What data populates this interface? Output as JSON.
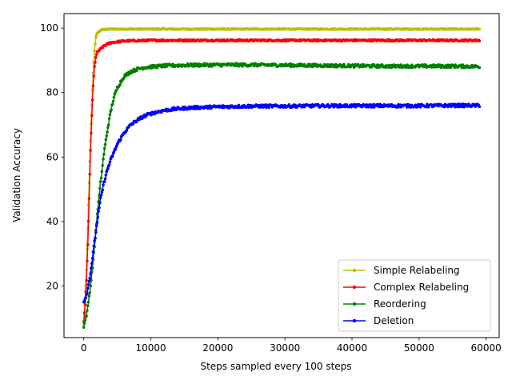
{
  "chart_data": {
    "type": "line",
    "title": "",
    "xlabel": "Steps sampled every 100 steps",
    "ylabel": "Validation Accuracy",
    "xlim": [
      -2950,
      61950
    ],
    "ylim": [
      4,
      104.5
    ],
    "xticks": [
      0,
      10000,
      20000,
      30000,
      40000,
      50000,
      60000
    ],
    "yticks": [
      20,
      40,
      60,
      80,
      100
    ],
    "grid": false,
    "legend_position": "lower-right",
    "marker": "circle",
    "series": [
      {
        "name": "Simple Relabeling",
        "color": "#bfbf00",
        "x": [
          0,
          200,
          400,
          600,
          800,
          1000,
          1200,
          1400,
          1600,
          1800,
          2000,
          2500,
          3000,
          4000,
          6000,
          10000,
          20000,
          30000,
          40000,
          50000,
          59000
        ],
        "y": [
          8,
          15,
          25,
          38,
          52,
          65,
          76,
          86,
          93,
          97,
          98.5,
          99.3,
          99.6,
          99.7,
          99.7,
          99.7,
          99.7,
          99.7,
          99.7,
          99.7,
          99.7
        ]
      },
      {
        "name": "Complex Relabeling",
        "color": "#ff0000",
        "x": [
          0,
          200,
          400,
          600,
          800,
          1000,
          1200,
          1400,
          1600,
          1800,
          2000,
          2500,
          3000,
          4000,
          6000,
          10000,
          20000,
          30000,
          40000,
          50000,
          59000
        ],
        "y": [
          9,
          14,
          22,
          33,
          47,
          62,
          73,
          82,
          88,
          91,
          92.5,
          93.5,
          94.5,
          95.5,
          96,
          96.2,
          96.2,
          96.2,
          96.2,
          96.2,
          96.2
        ]
      },
      {
        "name": "Reordering",
        "color": "#008000",
        "x": [
          0,
          500,
          1000,
          1500,
          2000,
          2500,
          3000,
          3500,
          4000,
          4500,
          5000,
          6000,
          7000,
          8000,
          9000,
          10000,
          12000,
          15000,
          20000,
          25000,
          30000,
          35000,
          40000,
          45000,
          50000,
          55000,
          59000
        ],
        "y": [
          7.5,
          12,
          20,
          30,
          42,
          52,
          61,
          68,
          74,
          78.5,
          81.5,
          85,
          86.5,
          87.3,
          87.8,
          88,
          88.3,
          88.5,
          88.6,
          88.6,
          88.5,
          88.4,
          88.3,
          88.2,
          88.2,
          88.2,
          88.1
        ]
      },
      {
        "name": "Deletion",
        "color": "#0000ff",
        "x": [
          0,
          500,
          1000,
          1500,
          2000,
          2500,
          3000,
          3500,
          4000,
          5000,
          6000,
          7000,
          8000,
          9000,
          10000,
          12000,
          14000,
          16000,
          20000,
          25000,
          30000,
          35000,
          40000,
          45000,
          50000,
          55000,
          59000
        ],
        "y": [
          15,
          18,
          24,
          32,
          40,
          47,
          52,
          56,
          59,
          64,
          67.5,
          70,
          71.5,
          72.7,
          73.5,
          74.5,
          75,
          75.3,
          75.6,
          75.8,
          75.8,
          75.9,
          75.9,
          75.9,
          75.9,
          76,
          76
        ]
      }
    ]
  }
}
